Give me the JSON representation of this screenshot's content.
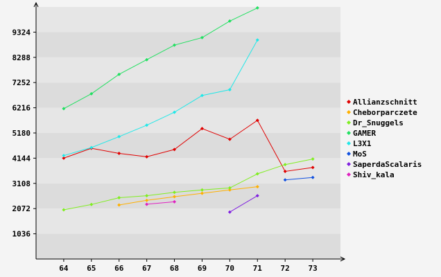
{
  "chart_data": {
    "type": "line",
    "title": "",
    "xlabel": "",
    "ylabel": "",
    "x": [
      64,
      65,
      66,
      67,
      68,
      69,
      70,
      71,
      72,
      73
    ],
    "xlim": [
      63,
      74
    ],
    "ylim": [
      0,
      10360
    ],
    "yticks": [
      1036,
      2072,
      3108,
      4144,
      5180,
      6216,
      7252,
      8288,
      9324
    ],
    "grid": "horizontal bands",
    "legend_position": "right",
    "series": [
      {
        "name": "Allianzschnitt",
        "color": "#e00000",
        "points": [
          [
            64,
            4144
          ],
          [
            65,
            4550
          ],
          [
            66,
            4340
          ],
          [
            67,
            4200
          ],
          [
            68,
            4500
          ],
          [
            69,
            5360
          ],
          [
            70,
            4920
          ],
          [
            71,
            5700
          ],
          [
            72,
            3600
          ],
          [
            73,
            3760
          ]
        ]
      },
      {
        "name": "Cheborparczete",
        "color": "#ffb000",
        "points": [
          [
            66,
            2220
          ],
          [
            67,
            2410
          ],
          [
            68,
            2560
          ],
          [
            69,
            2700
          ],
          [
            70,
            2840
          ],
          [
            71,
            2970
          ]
        ]
      },
      {
        "name": "Dr_Snuggels",
        "color": "#80ee20",
        "points": [
          [
            64,
            2020
          ],
          [
            65,
            2240
          ],
          [
            66,
            2520
          ],
          [
            67,
            2600
          ],
          [
            68,
            2740
          ],
          [
            69,
            2840
          ],
          [
            70,
            2920
          ],
          [
            71,
            3500
          ],
          [
            72,
            3880
          ],
          [
            73,
            4110
          ]
        ]
      },
      {
        "name": "GAMER",
        "color": "#20e060",
        "points": [
          [
            64,
            6180
          ],
          [
            65,
            6790
          ],
          [
            66,
            7590
          ],
          [
            67,
            8190
          ],
          [
            68,
            8790
          ],
          [
            69,
            9100
          ],
          [
            70,
            9780
          ],
          [
            71,
            10320
          ]
        ]
      },
      {
        "name": "L3X1",
        "color": "#20e8e8",
        "points": [
          [
            64,
            4250
          ],
          [
            65,
            4580
          ],
          [
            66,
            5030
          ],
          [
            67,
            5500
          ],
          [
            68,
            6030
          ],
          [
            69,
            6720
          ],
          [
            70,
            6960
          ],
          [
            71,
            9000
          ]
        ]
      },
      {
        "name": "MoS",
        "color": "#1050e0",
        "points": [
          [
            72,
            3250
          ],
          [
            73,
            3350
          ]
        ]
      },
      {
        "name": "SaperdaScalaris",
        "color": "#8020e0",
        "points": [
          [
            70,
            1930
          ],
          [
            71,
            2600
          ]
        ]
      },
      {
        "name": "Shiv_kala",
        "color": "#e020c0",
        "points": [
          [
            67,
            2250
          ],
          [
            68,
            2350
          ]
        ]
      }
    ]
  }
}
